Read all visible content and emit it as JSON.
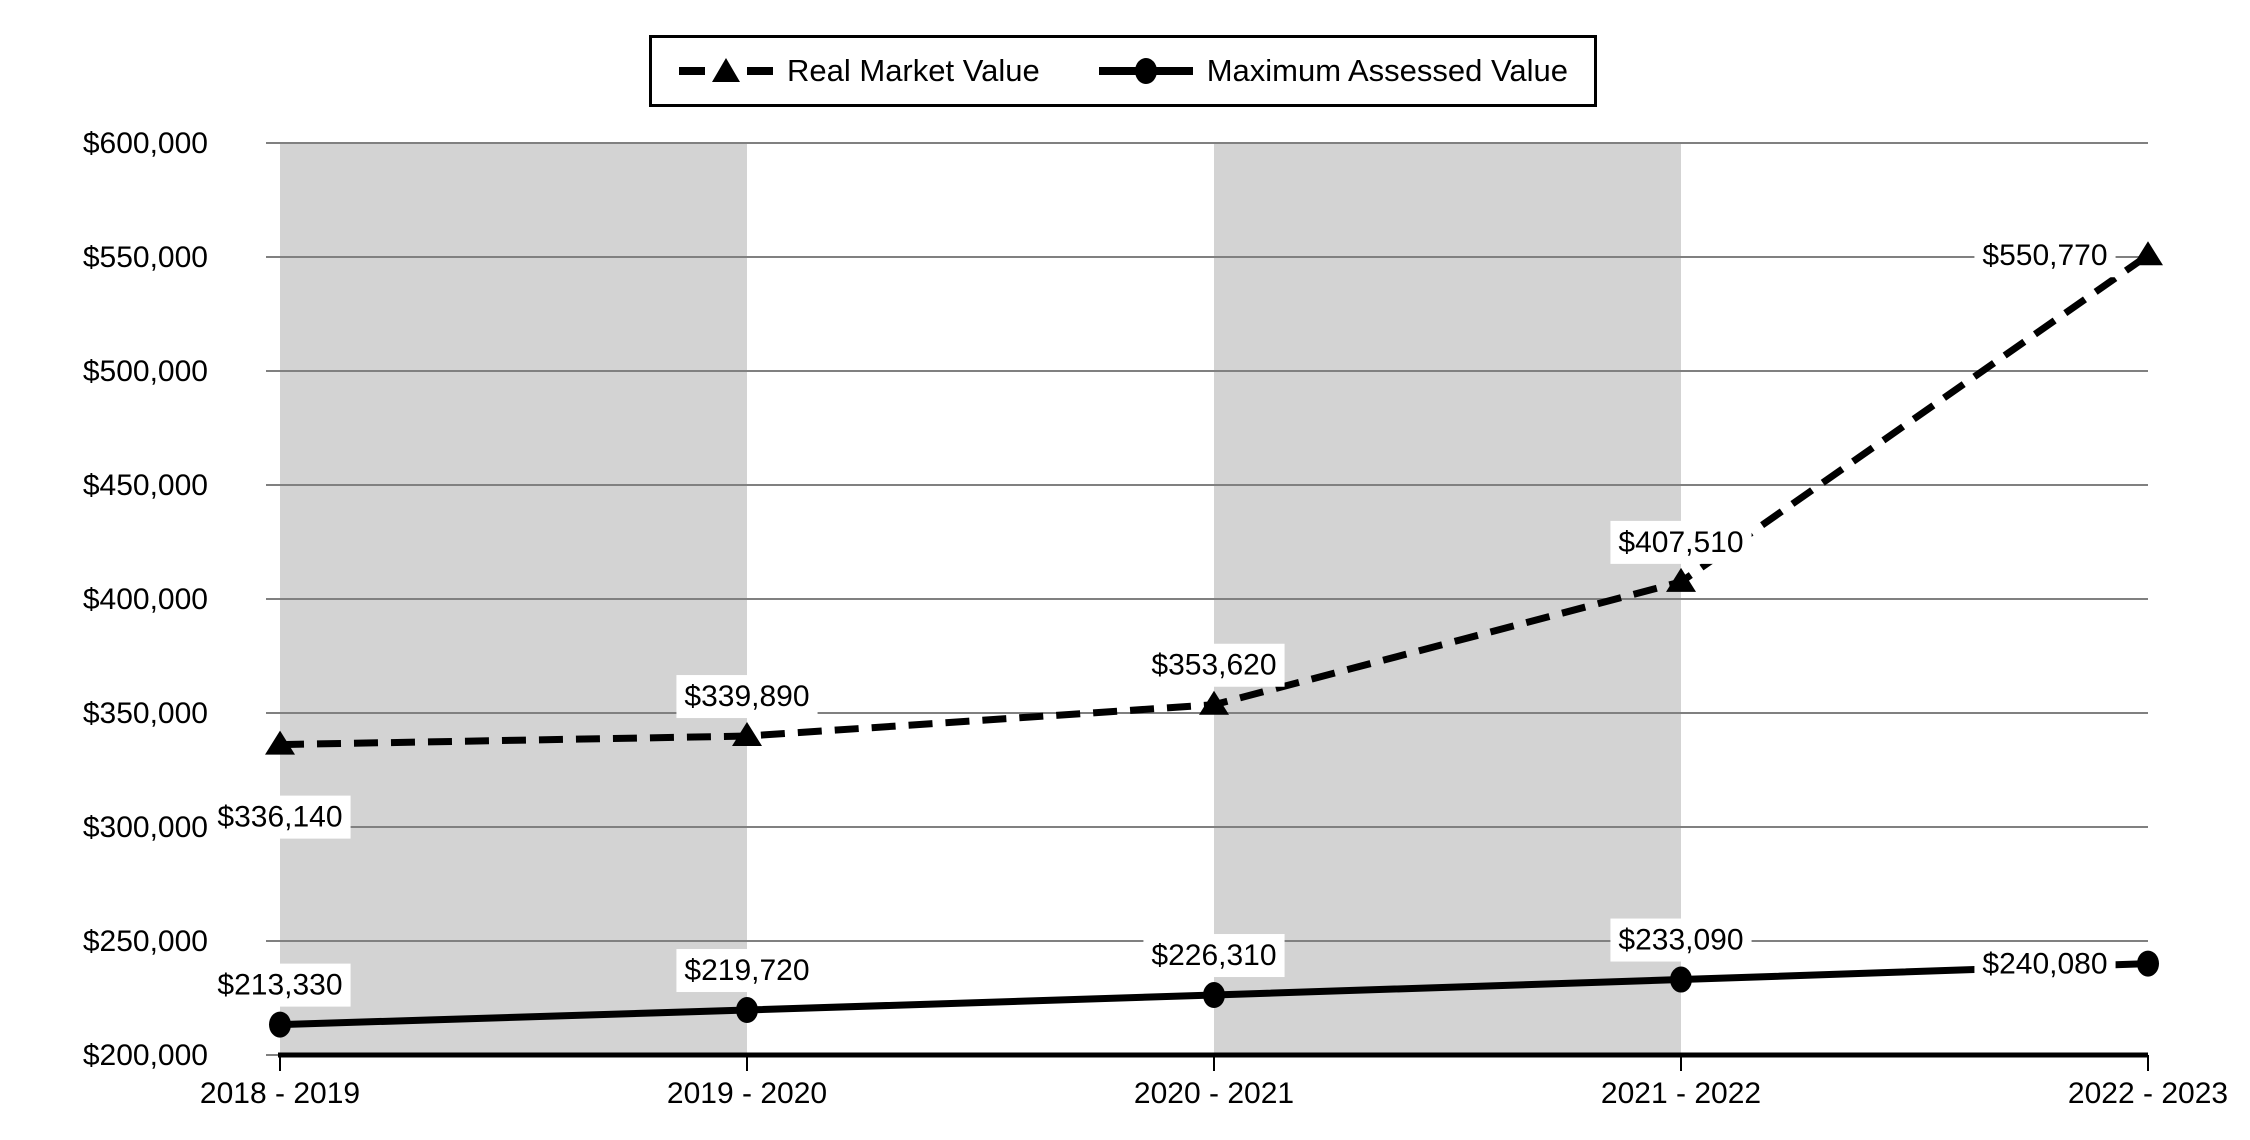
{
  "legend": {
    "items": [
      {
        "label": "Real Market Value",
        "marker": "dashed-line-with-triangle"
      },
      {
        "label": "Maximum Assessed Value",
        "marker": "solid-line-with-circle"
      }
    ],
    "border_color": "#000000",
    "background": "#ffffff"
  },
  "chart_data": {
    "type": "line",
    "categories": [
      "2018 - 2019",
      "2019 - 2020",
      "2020 - 2021",
      "2021 - 2022",
      "2022 - 2023"
    ],
    "series": [
      {
        "name": "Real Market Value",
        "style": "dashed",
        "marker": "triangle",
        "values": [
          336140,
          339890,
          353620,
          407510,
          550770
        ],
        "data_labels": [
          "$336,140",
          "$339,890",
          "$353,620",
          "$407,510",
          "$550,770"
        ],
        "label_positions": [
          "below",
          "above",
          "above",
          "above",
          "left"
        ]
      },
      {
        "name": "Maximum Assessed Value",
        "style": "solid",
        "marker": "circle",
        "values": [
          213330,
          219720,
          226310,
          233090,
          240080
        ],
        "data_labels": [
          "$213,330",
          "$219,720",
          "$226,310",
          "$233,090",
          "$240,080"
        ],
        "label_positions": [
          "above",
          "above",
          "above",
          "above",
          "left"
        ]
      }
    ],
    "y_axis": {
      "min": 200000,
      "max": 600000,
      "step": 50000,
      "tick_values": [
        200000,
        250000,
        300000,
        350000,
        400000,
        450000,
        500000,
        550000,
        600000
      ],
      "tick_labels": [
        "$200,000",
        "$250,000",
        "$300,000",
        "$350,000",
        "$400,000",
        "$450,000",
        "$500,000",
        "$550,000",
        "$600,000"
      ]
    },
    "shaded_bands": [
      {
        "from_category": 0,
        "to_category": 1
      },
      {
        "from_category": 2,
        "to_category": 3
      }
    ],
    "grid": true,
    "legend_position": "top-center",
    "colors": {
      "band": "#d3d3d3",
      "gridline": "#808080",
      "axis": "#000000",
      "series": "#000000",
      "label_background": "#ffffff",
      "text": "#000000"
    }
  }
}
